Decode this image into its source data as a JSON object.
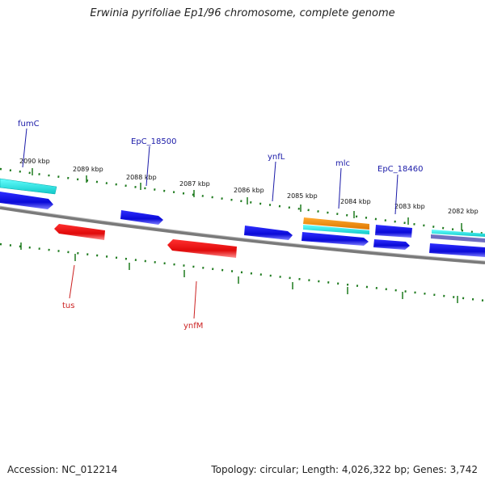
{
  "title": "Erwinia pyrifoliae Ep1/96 chromosome, complete genome",
  "footer": {
    "accession": "Accession: NC_012214",
    "summary": "Topology: circular; Length: 4,026,322 bp; Genes: 3,742"
  },
  "colors": {
    "forward_label": "#1a1aa8",
    "reverse_label": "#cc2222",
    "tick": "#1e7a1e",
    "backbone": "#808080",
    "gene_blue": "#1010e0",
    "gene_red": "#ee1111",
    "gene_cyan": "#22dddd",
    "gene_orange": "#ee8800",
    "gene_purple": "#7070c0"
  },
  "ruler": {
    "labels": [
      "2090 kbp",
      "2089 kbp",
      "2088 kbp",
      "2087 kbp",
      "2086 kbp",
      "2085 kbp",
      "2084 kbp",
      "2083 kbp",
      "2082 kbp"
    ]
  },
  "gene_labels": {
    "forward": [
      "fumC",
      "EpC_18500",
      "ynfL",
      "mlc",
      "EpC_18460"
    ],
    "reverse": [
      "tus",
      "ynfM"
    ]
  }
}
